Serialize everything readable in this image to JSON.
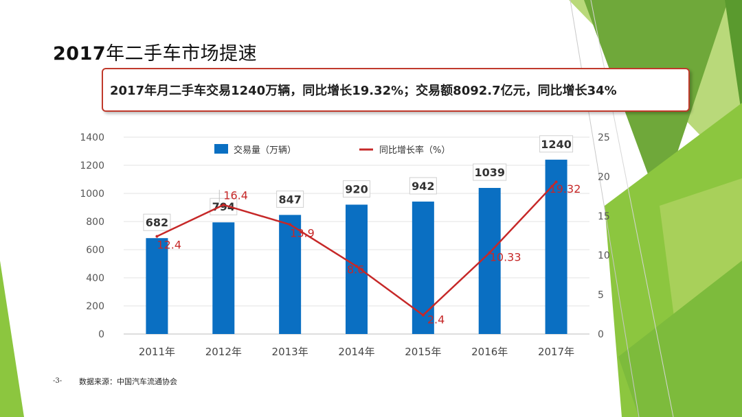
{
  "slide": {
    "title_year": "2017",
    "title_rest": "年二手车市场提速",
    "callout": "2017年月二手车交易1240万辆，同比增长19.32%；交易额8092.7亿元，同比增长34%",
    "page_number": "-3-",
    "source": "数据来源：中国汽车流通协会"
  },
  "colors": {
    "bar": "#0a6fc2",
    "line": "#c62828",
    "callout_border": "#c0392b",
    "green_light": "#a8d05a",
    "green_dark": "#6fa83a"
  },
  "chart_data": {
    "type": "bar+line",
    "categories": [
      "2011年",
      "2012年",
      "2013年",
      "2014年",
      "2015年",
      "2016年",
      "2017年"
    ],
    "series": [
      {
        "name": "交易量（万辆）",
        "type": "bar",
        "axis": "left",
        "values": [
          682,
          794,
          847,
          920,
          942,
          1039,
          1240
        ],
        "labels": [
          "682",
          "794",
          "847",
          "920",
          "942",
          "1039",
          "1240"
        ]
      },
      {
        "name": "同比增长率（%）",
        "type": "line",
        "axis": "right",
        "values": [
          12.4,
          16.4,
          13.9,
          8.6,
          2.4,
          10.33,
          19.32
        ],
        "labels": [
          "12.4",
          "16.4",
          "13.9",
          "8.6",
          "2.4",
          "10.33",
          "19.32"
        ]
      }
    ],
    "y_left": {
      "min": 0,
      "max": 1400,
      "ticks": [
        "0",
        "200",
        "400",
        "600",
        "800",
        "1000",
        "1200",
        "1400"
      ]
    },
    "y_right": {
      "min": 0,
      "max": 25,
      "ticks": [
        "0",
        "5",
        "10",
        "15",
        "20",
        "25"
      ]
    },
    "grid": true,
    "legend": "top"
  }
}
